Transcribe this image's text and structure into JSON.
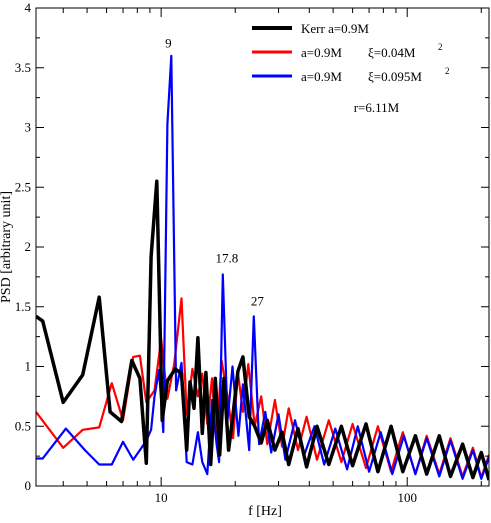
{
  "chart_data": {
    "type": "line",
    "title": "",
    "xlabel": "f [Hz]",
    "ylabel": "PSD [arbitrary unit]",
    "x_scale": "log",
    "xlim": [
      3.1,
      215
    ],
    "ylim": [
      0,
      4
    ],
    "x_ticks": [
      {
        "value": 10,
        "label": "10"
      },
      {
        "value": 100,
        "label": "100"
      }
    ],
    "y_ticks": [
      {
        "value": 0,
        "label": "0"
      },
      {
        "value": 0.5,
        "label": "0.5"
      },
      {
        "value": 1,
        "label": "1"
      },
      {
        "value": 1.5,
        "label": "1.5"
      },
      {
        "value": 2,
        "label": "2"
      },
      {
        "value": 2.5,
        "label": "2.5"
      },
      {
        "value": 3,
        "label": "3"
      },
      {
        "value": 3.5,
        "label": "3.5"
      },
      {
        "value": 4,
        "label": "4"
      }
    ],
    "grid": false,
    "legend_position": "top-right",
    "series": [
      {
        "legend_label": "Kerr a=0.9M",
        "color": "#000000",
        "points": [
          [
            3.1,
            1.42
          ],
          [
            3.3,
            1.38
          ],
          [
            4.0,
            0.7
          ],
          [
            4.8,
            0.93
          ],
          [
            5.6,
            1.58
          ],
          [
            6.2,
            0.62
          ],
          [
            6.9,
            0.54
          ],
          [
            7.6,
            1.05
          ],
          [
            8.2,
            0.9
          ],
          [
            8.7,
            0.19
          ],
          [
            9.1,
            1.92
          ],
          [
            9.6,
            2.55
          ],
          [
            10.1,
            0.55
          ],
          [
            10.6,
            0.88
          ],
          [
            11.4,
            0.98
          ],
          [
            12.1,
            0.94
          ],
          [
            12.7,
            0.3
          ],
          [
            13.1,
            0.87
          ],
          [
            13.6,
            0.65
          ],
          [
            14.1,
            1.24
          ],
          [
            14.7,
            0.44
          ],
          [
            15.2,
            0.95
          ],
          [
            15.9,
            0.18
          ],
          [
            16.6,
            0.9
          ],
          [
            17.3,
            0.26
          ],
          [
            18.0,
            0.9
          ],
          [
            18.8,
            0.3
          ],
          [
            19.5,
            0.56
          ],
          [
            20.5,
            0.96
          ],
          [
            21.5,
            1.08
          ],
          [
            22.8,
            0.58
          ],
          [
            24,
            0.5
          ],
          [
            25.5,
            0.36
          ],
          [
            27,
            0.55
          ],
          [
            29,
            0.3
          ],
          [
            31,
            0.45
          ],
          [
            33,
            0.18
          ],
          [
            36,
            0.48
          ],
          [
            39,
            0.16
          ],
          [
            43,
            0.5
          ],
          [
            48,
            0.18
          ],
          [
            54,
            0.5
          ],
          [
            60,
            0.17
          ],
          [
            68,
            0.52
          ],
          [
            76,
            0.12
          ],
          [
            86,
            0.5
          ],
          [
            96,
            0.12
          ],
          [
            108,
            0.42
          ],
          [
            120,
            0.1
          ],
          [
            135,
            0.42
          ],
          [
            150,
            0.08
          ],
          [
            168,
            0.35
          ],
          [
            185,
            0.07
          ],
          [
            200,
            0.28
          ],
          [
            215,
            0.05
          ]
        ]
      },
      {
        "legend_label": "a=0.9M",
        "legend_param": "ξ=0.04M",
        "legend_sup": "2",
        "color": "#ff0000",
        "points": [
          [
            3.1,
            0.62
          ],
          [
            4.0,
            0.32
          ],
          [
            4.8,
            0.47
          ],
          [
            5.6,
            0.49
          ],
          [
            6.3,
            0.86
          ],
          [
            7.0,
            0.55
          ],
          [
            7.7,
            1.08
          ],
          [
            8.2,
            1.09
          ],
          [
            8.7,
            0.7
          ],
          [
            9.4,
            0.8
          ],
          [
            10.0,
            1.23
          ],
          [
            10.6,
            0.73
          ],
          [
            11.3,
            1.02
          ],
          [
            12.1,
            1.57
          ],
          [
            12.7,
            0.6
          ],
          [
            13.4,
            0.98
          ],
          [
            14.1,
            0.75
          ],
          [
            14.7,
            0.94
          ],
          [
            15.4,
            0.52
          ],
          [
            16.1,
            0.9
          ],
          [
            16.8,
            0.4
          ],
          [
            17.6,
            1.05
          ],
          [
            18.6,
            0.75
          ],
          [
            19.6,
            0.4
          ],
          [
            20.5,
            0.95
          ],
          [
            21.5,
            0.62
          ],
          [
            22.6,
            1.02
          ],
          [
            24,
            0.5
          ],
          [
            25.5,
            0.75
          ],
          [
            27,
            0.35
          ],
          [
            29,
            0.72
          ],
          [
            31,
            0.33
          ],
          [
            33,
            0.65
          ],
          [
            36,
            0.3
          ],
          [
            39,
            0.58
          ],
          [
            43,
            0.22
          ],
          [
            48,
            0.55
          ],
          [
            54,
            0.2
          ],
          [
            60,
            0.52
          ],
          [
            68,
            0.15
          ],
          [
            76,
            0.5
          ],
          [
            86,
            0.12
          ],
          [
            96,
            0.45
          ],
          [
            108,
            0.1
          ],
          [
            120,
            0.42
          ],
          [
            135,
            0.1
          ],
          [
            150,
            0.4
          ],
          [
            168,
            0.08
          ],
          [
            185,
            0.32
          ],
          [
            200,
            0.07
          ],
          [
            215,
            0.26
          ]
        ]
      },
      {
        "legend_label": "a=0.9M",
        "legend_param": "ξ=0.095M",
        "legend_sup": "2",
        "color": "#0000ff",
        "points": [
          [
            3.1,
            0.23
          ],
          [
            3.3,
            0.23
          ],
          [
            4.1,
            0.48
          ],
          [
            4.9,
            0.3
          ],
          [
            5.6,
            0.18
          ],
          [
            6.3,
            0.18
          ],
          [
            7.0,
            0.37
          ],
          [
            7.7,
            0.22
          ],
          [
            8.2,
            0.3
          ],
          [
            8.7,
            0.38
          ],
          [
            9.1,
            0.47
          ],
          [
            9.4,
            0.75
          ],
          [
            9.8,
            0.97
          ],
          [
            10.2,
            0.45
          ],
          [
            10.6,
            3.03
          ],
          [
            11.0,
            3.6
          ],
          [
            11.5,
            0.8
          ],
          [
            12.1,
            1.03
          ],
          [
            12.7,
            0.2
          ],
          [
            13.4,
            0.18
          ],
          [
            14.1,
            0.45
          ],
          [
            14.7,
            0.2
          ],
          [
            15.4,
            0.1
          ],
          [
            16.1,
            0.72
          ],
          [
            16.8,
            0.35
          ],
          [
            17.2,
            0.2
          ],
          [
            17.8,
            1.77
          ],
          [
            18.6,
            0.55
          ],
          [
            19.5,
            1.0
          ],
          [
            20.6,
            0.42
          ],
          [
            21.5,
            0.85
          ],
          [
            22.8,
            0.3
          ],
          [
            23.8,
            1.42
          ],
          [
            25,
            0.35
          ],
          [
            26.5,
            0.62
          ],
          [
            28,
            0.28
          ],
          [
            30,
            0.6
          ],
          [
            32,
            0.22
          ],
          [
            35,
            0.55
          ],
          [
            38,
            0.25
          ],
          [
            42,
            0.5
          ],
          [
            46,
            0.18
          ],
          [
            51,
            0.48
          ],
          [
            57,
            0.14
          ],
          [
            63,
            0.5
          ],
          [
            70,
            0.12
          ],
          [
            78,
            0.45
          ],
          [
            87,
            0.1
          ],
          [
            97,
            0.42
          ],
          [
            108,
            0.1
          ],
          [
            120,
            0.4
          ],
          [
            135,
            0.08
          ],
          [
            150,
            0.38
          ],
          [
            168,
            0.06
          ],
          [
            185,
            0.3
          ],
          [
            200,
            0.06
          ],
          [
            215,
            0.24
          ]
        ]
      }
    ],
    "annotations": [
      {
        "text": "9",
        "x": 10.7,
        "y": 3.67
      },
      {
        "text": "17.8",
        "x": 18.5,
        "y": 1.87
      },
      {
        "text": "27",
        "x": 24.6,
        "y": 1.51
      },
      {
        "text": "r=6.11M",
        "x": 75,
        "y": 3.13
      }
    ]
  }
}
